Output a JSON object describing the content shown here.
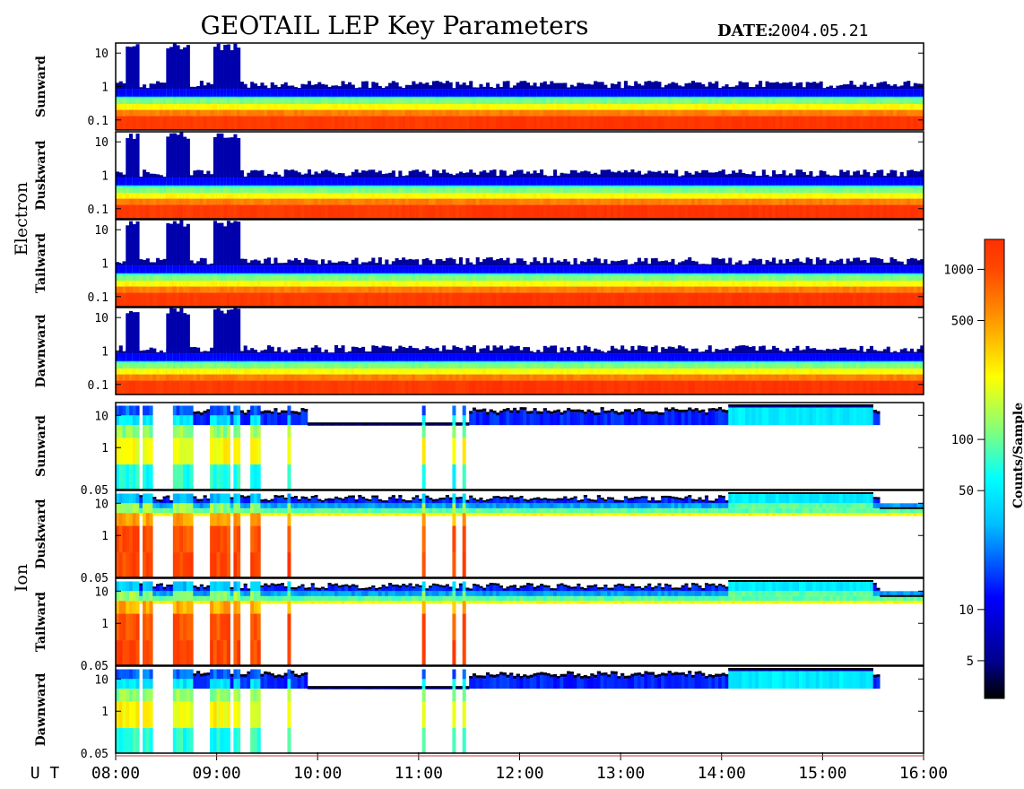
{
  "title": "GEOTAIL LEP Key Parameters",
  "date_label": "DATE:",
  "date_value": "2004.05.21",
  "colors": {
    "colormap": [
      "#000000",
      "#00008b",
      "#0000ff",
      "#00bfff",
      "#00ffff",
      "#7fff7f",
      "#ffff00",
      "#ff8c00",
      "#ff4500",
      "#ff3000"
    ]
  },
  "chart_data": {
    "type": "heatmap",
    "x_axis": {
      "label": "U T",
      "range": [
        "08:00",
        "16:00"
      ],
      "ticks": [
        "08:00",
        "09:00",
        "10:00",
        "11:00",
        "12:00",
        "13:00",
        "14:00",
        "15:00",
        "16:00"
      ]
    },
    "groups": [
      {
        "name": "Electron",
        "y_ticks": [
          "10",
          "1",
          "0.1"
        ],
        "y_range": [
          0.05,
          20
        ],
        "panels": [
          "Sunward",
          "Duskward",
          "Tailward",
          "Dawnward"
        ]
      },
      {
        "name": "Ion",
        "y_ticks": [
          "10",
          "1",
          "0.05"
        ],
        "y_range": [
          0.05,
          25
        ],
        "panels": [
          "Sunward",
          "Duskward",
          "Tailward",
          "Dawnward"
        ]
      }
    ],
    "colorbar": {
      "label": "Counts/Sample",
      "scale": "log",
      "ticks": [
        "1000",
        "500",
        "100",
        "50",
        "10",
        "5"
      ],
      "tick_values": [
        1000,
        500,
        100,
        50,
        10,
        5
      ],
      "range": [
        3,
        1500
      ]
    }
  }
}
